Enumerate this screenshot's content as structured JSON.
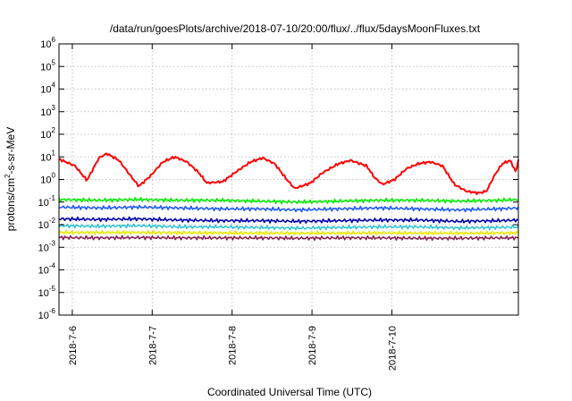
{
  "chart_data": {
    "type": "line",
    "title": "/data/run/goesPlots/archive/2018-07-10/20:00/flux/../flux/5daysMoonFluxes.txt",
    "xlabel": "Coordinated Universal Time (UTC)",
    "ylabel": "protons/cm²-s-sr-MeV",
    "ylabel_parts": {
      "pre": "protons/cm",
      "sup": "2",
      "post": "-s-sr-MeV"
    },
    "y_scale": "log",
    "ylim": [
      1e-06,
      1000000.0
    ],
    "y_ticks": [
      {
        "base": "10",
        "exp": "-6",
        "value": 1e-06
      },
      {
        "base": "10",
        "exp": "-5",
        "value": 1e-05
      },
      {
        "base": "10",
        "exp": "-4",
        "value": 0.0001
      },
      {
        "base": "10",
        "exp": "-3",
        "value": 0.001
      },
      {
        "base": "10",
        "exp": "-2",
        "value": 0.01
      },
      {
        "base": "10",
        "exp": "-1",
        "value": 0.1
      },
      {
        "base": "10",
        "exp": "0",
        "value": 1
      },
      {
        "base": "10",
        "exp": "1",
        "value": 10
      },
      {
        "base": "10",
        "exp": "2",
        "value": 100
      },
      {
        "base": "10",
        "exp": "3",
        "value": 1000
      },
      {
        "base": "10",
        "exp": "4",
        "value": 10000
      },
      {
        "base": "10",
        "exp": "5",
        "value": 100000
      },
      {
        "base": "10",
        "exp": "6",
        "value": 1000000
      }
    ],
    "x_range_days": [
      "2018-07-05 20:00",
      "2018-07-10 20:00"
    ],
    "x_ticks": [
      {
        "label": "2018-7-6",
        "day": 0.1667
      },
      {
        "label": "2018-7-7",
        "day": 1.1667
      },
      {
        "label": "2018-7-8",
        "day": 2.1667
      },
      {
        "label": "2018-7-9",
        "day": 3.1667
      },
      {
        "label": "2018-7-10",
        "day": 4.1667
      }
    ],
    "grid": true,
    "series": [
      {
        "color": "#ff0000",
        "width": 2.0,
        "points": [
          [
            0,
            8
          ],
          [
            0.2,
            4
          ],
          [
            0.35,
            0.9
          ],
          [
            0.5,
            9
          ],
          [
            0.6,
            14
          ],
          [
            0.75,
            7
          ],
          [
            0.9,
            1.4
          ],
          [
            1.0,
            0.5
          ],
          [
            1.15,
            1.5
          ],
          [
            1.3,
            6
          ],
          [
            1.45,
            10
          ],
          [
            1.6,
            6
          ],
          [
            1.75,
            2
          ],
          [
            1.85,
            0.7
          ],
          [
            2.05,
            0.8
          ],
          [
            2.2,
            2
          ],
          [
            2.4,
            6
          ],
          [
            2.55,
            9
          ],
          [
            2.7,
            5
          ],
          [
            2.85,
            1
          ],
          [
            2.95,
            0.4
          ],
          [
            3.15,
            0.7
          ],
          [
            3.3,
            2
          ],
          [
            3.5,
            5
          ],
          [
            3.65,
            7
          ],
          [
            3.85,
            4
          ],
          [
            3.95,
            1.2
          ],
          [
            4.05,
            0.6
          ],
          [
            4.2,
            1
          ],
          [
            4.35,
            3
          ],
          [
            4.5,
            5
          ],
          [
            4.65,
            6
          ],
          [
            4.8,
            4
          ],
          [
            4.95,
            0.6
          ],
          [
            5.1,
            0.3
          ],
          [
            5.25,
            0.25
          ],
          [
            5.35,
            0.3
          ],
          [
            5.45,
            1.5
          ],
          [
            5.55,
            5
          ],
          [
            5.65,
            7
          ],
          [
            5.72,
            2
          ],
          [
            5.75,
            8
          ]
        ]
      },
      {
        "color": "#00ee00",
        "width": 1.6,
        "points": [
          [
            0,
            0.13
          ],
          [
            0.5,
            0.12
          ],
          [
            1.0,
            0.13
          ],
          [
            1.5,
            0.12
          ],
          [
            2.0,
            0.12
          ],
          [
            2.5,
            0.11
          ],
          [
            3.0,
            0.1
          ],
          [
            3.5,
            0.11
          ],
          [
            4.0,
            0.12
          ],
          [
            4.5,
            0.12
          ],
          [
            5.0,
            0.11
          ],
          [
            5.5,
            0.12
          ],
          [
            5.75,
            0.13
          ]
        ]
      },
      {
        "color": "#1e5aff",
        "width": 1.6,
        "points": [
          [
            0,
            0.06
          ],
          [
            0.5,
            0.055
          ],
          [
            1.0,
            0.06
          ],
          [
            1.5,
            0.055
          ],
          [
            2.0,
            0.05
          ],
          [
            2.5,
            0.05
          ],
          [
            3.0,
            0.045
          ],
          [
            3.5,
            0.05
          ],
          [
            4.0,
            0.055
          ],
          [
            4.5,
            0.05
          ],
          [
            5.0,
            0.045
          ],
          [
            5.5,
            0.05
          ],
          [
            5.75,
            0.055
          ]
        ]
      },
      {
        "color": "#0000aa",
        "width": 1.6,
        "points": [
          [
            0,
            0.018
          ],
          [
            0.5,
            0.017
          ],
          [
            1.0,
            0.018
          ],
          [
            1.5,
            0.016
          ],
          [
            2.0,
            0.015
          ],
          [
            2.5,
            0.015
          ],
          [
            3.0,
            0.014
          ],
          [
            3.5,
            0.015
          ],
          [
            4.0,
            0.016
          ],
          [
            4.5,
            0.016
          ],
          [
            5.0,
            0.014
          ],
          [
            5.5,
            0.015
          ],
          [
            5.75,
            0.016
          ]
        ]
      },
      {
        "color": "#20c0d0",
        "width": 1.4,
        "points": [
          [
            0,
            0.009
          ],
          [
            0.5,
            0.0085
          ],
          [
            1.0,
            0.009
          ],
          [
            1.5,
            0.008
          ],
          [
            2.0,
            0.008
          ],
          [
            2.5,
            0.0075
          ],
          [
            3.0,
            0.007
          ],
          [
            3.5,
            0.0075
          ],
          [
            4.0,
            0.008
          ],
          [
            4.5,
            0.008
          ],
          [
            5.0,
            0.0072
          ],
          [
            5.5,
            0.0075
          ],
          [
            5.75,
            0.008
          ]
        ]
      },
      {
        "color": "#e8e800",
        "width": 1.6,
        "points": [
          [
            0,
            0.0045
          ],
          [
            1.0,
            0.0045
          ],
          [
            2.0,
            0.0043
          ],
          [
            3.0,
            0.0042
          ],
          [
            4.0,
            0.0043
          ],
          [
            5.0,
            0.0042
          ],
          [
            5.75,
            0.0043
          ]
        ]
      },
      {
        "color": "#8b2252",
        "width": 1.6,
        "points": [
          [
            0,
            0.0027
          ],
          [
            0.5,
            0.0026
          ],
          [
            1.0,
            0.0027
          ],
          [
            1.5,
            0.0026
          ],
          [
            2.0,
            0.0026
          ],
          [
            2.5,
            0.0026
          ],
          [
            3.0,
            0.0025
          ],
          [
            3.5,
            0.0026
          ],
          [
            4.0,
            0.0026
          ],
          [
            4.5,
            0.0025
          ],
          [
            5.0,
            0.0025
          ],
          [
            5.5,
            0.0026
          ],
          [
            5.75,
            0.0026
          ]
        ]
      }
    ]
  }
}
